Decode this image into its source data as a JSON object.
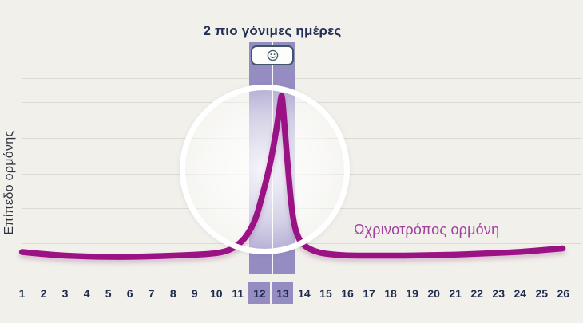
{
  "title": "2 πιο γόνιμες ημέρες",
  "y_axis_label": "Επίπεδο ορμόνης",
  "legend_label": "Ωχρινοτρόπος ορμόνη",
  "fertile_badge_icon": "smiley-face-icon",
  "colors": {
    "background": "#f1f0eb",
    "curve": "#9a1283",
    "fertile_band": "#958dc2",
    "day_label_text": "#1f2b4d",
    "legend_text": "#a33f9f",
    "title_text": "#232f55",
    "gridline": "#dbdad4",
    "badge_border": "#3f5666"
  },
  "x_axis": {
    "days": [
      "1",
      "2",
      "3",
      "4",
      "5",
      "6",
      "7",
      "8",
      "9",
      "10",
      "11",
      "12",
      "13",
      "14",
      "15",
      "16",
      "17",
      "18",
      "19",
      "20",
      "21",
      "22",
      "23",
      "24",
      "25",
      "26"
    ],
    "highlighted_days": [
      "12",
      "13"
    ]
  },
  "chart_data": {
    "type": "line",
    "title": "2 πιο γόνιμες ημέρες",
    "ylabel": "Επίπεδο ορμόνης",
    "xlabel": "",
    "x": [
      1,
      2,
      3,
      4,
      5,
      6,
      7,
      8,
      9,
      10,
      11,
      12,
      13,
      14,
      15,
      16,
      17,
      18,
      19,
      20,
      21,
      22,
      23,
      24,
      25,
      26
    ],
    "series": [
      {
        "name": "Ωχρινοτρόπος ορμόνη",
        "values": [
          1.2,
          1.1,
          1.0,
          0.95,
          0.95,
          0.95,
          0.97,
          1.0,
          1.05,
          1.1,
          1.6,
          4.8,
          10,
          1.5,
          1.1,
          1.0,
          1.0,
          1.0,
          1.0,
          1.05,
          1.05,
          1.1,
          1.15,
          1.2,
          1.3,
          1.4
        ]
      }
    ],
    "ylim": [
      0,
      11
    ],
    "grid": true,
    "legend_position": "right-middle",
    "annotations": {
      "highlight_band_days": [
        12,
        13
      ],
      "peak_day": 13,
      "circle_highlight_center_day": 12.5,
      "badge": "smiley-face above days 12-13"
    },
    "curve_profile": [
      [
        1,
        1.2
      ],
      [
        2,
        1.08
      ],
      [
        3,
        1.0
      ],
      [
        4,
        0.95
      ],
      [
        5,
        0.93
      ],
      [
        6,
        0.93
      ],
      [
        7,
        0.96
      ],
      [
        8,
        1.0
      ],
      [
        9,
        1.05
      ],
      [
        10,
        1.12
      ],
      [
        10.6,
        1.3
      ],
      [
        11,
        1.6
      ],
      [
        11.4,
        2.1
      ],
      [
        11.8,
        3.0
      ],
      [
        12.1,
        4.3
      ],
      [
        12.4,
        5.7
      ],
      [
        12.6,
        6.9
      ],
      [
        12.8,
        8.3
      ],
      [
        12.95,
        9.6
      ],
      [
        13,
        10
      ],
      [
        13.05,
        9.6
      ],
      [
        13.15,
        8.0
      ],
      [
        13.3,
        5.8
      ],
      [
        13.45,
        3.8
      ],
      [
        13.6,
        2.6
      ],
      [
        13.8,
        1.9
      ],
      [
        14.1,
        1.5
      ],
      [
        14.5,
        1.25
      ],
      [
        15,
        1.1
      ],
      [
        16,
        1.0
      ],
      [
        17,
        1.0
      ],
      [
        18,
        1.0
      ],
      [
        19,
        1.0
      ],
      [
        20,
        1.03
      ],
      [
        21,
        1.05
      ],
      [
        22,
        1.1
      ],
      [
        23,
        1.15
      ],
      [
        24,
        1.2
      ],
      [
        25,
        1.3
      ],
      [
        26,
        1.4
      ]
    ]
  }
}
